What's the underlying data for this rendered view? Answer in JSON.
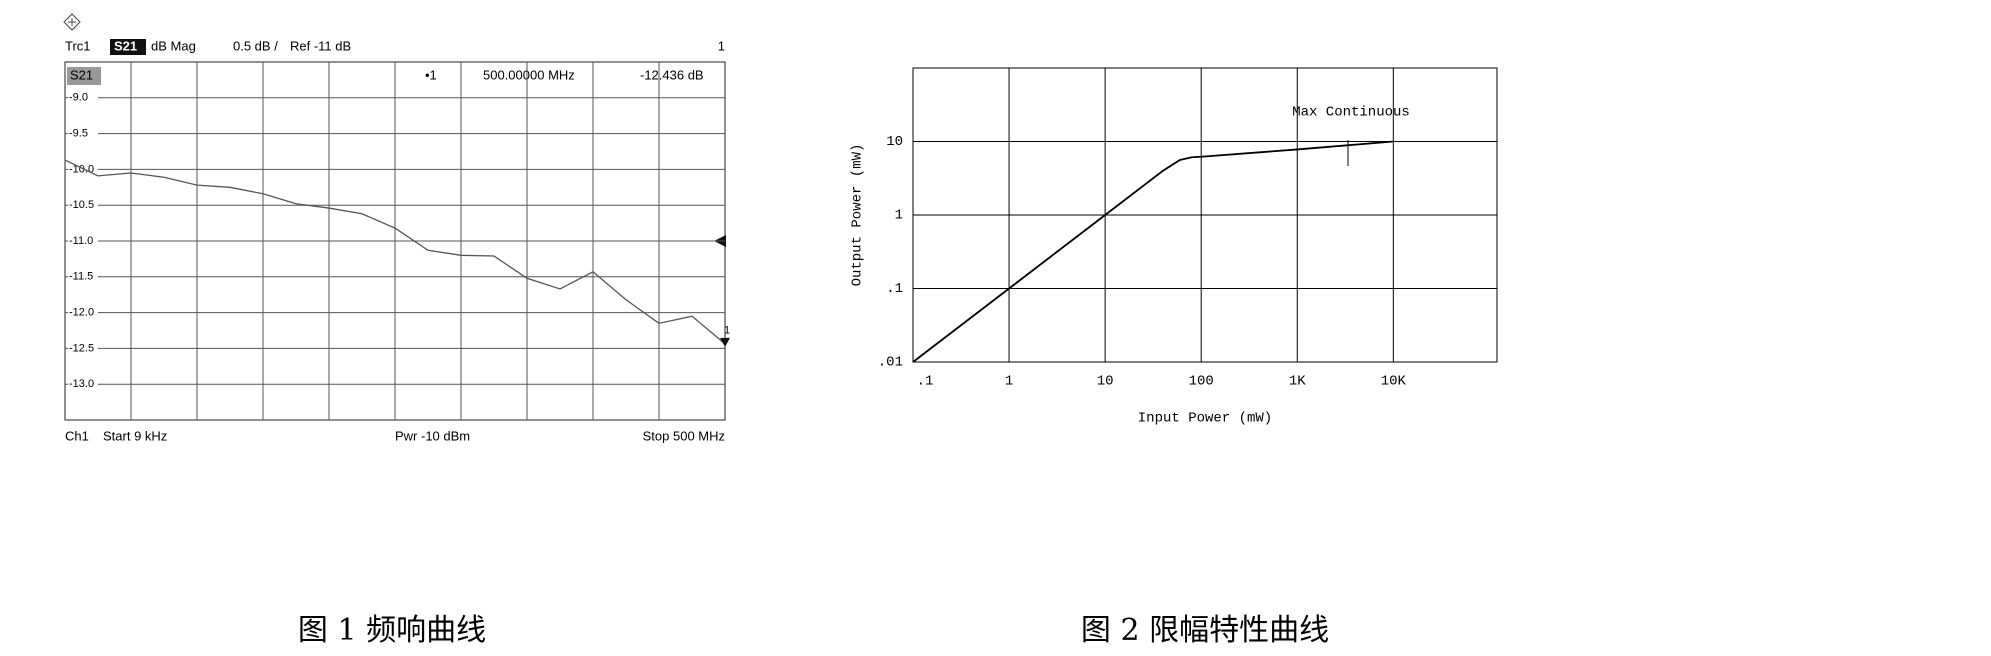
{
  "chart_data": [
    {
      "type": "line",
      "trace": "Trc1",
      "measurement": "S21",
      "format": "dB Mag",
      "scale": "0.5 dB /",
      "ref": "Ref -11 dB",
      "window": "1",
      "trace_label": "S21",
      "marker": {
        "label": "•1",
        "x": "500.00000 MHz",
        "y": "-12.436 dB",
        "id": "1"
      },
      "channel": "Ch1",
      "start": "Start 9 kHz",
      "power": "Pwr -10 dBm",
      "stop": "Stop 500 MHz",
      "caption": "图 1 频响曲线",
      "x": [
        0.009,
        25,
        50,
        75,
        100,
        125,
        150,
        175,
        200,
        225,
        250,
        275,
        300,
        325,
        350,
        375,
        400,
        425,
        450,
        475,
        500
      ],
      "values": [
        -9.87,
        -10.09,
        -10.05,
        -10.11,
        -10.22,
        -10.25,
        -10.34,
        -10.48,
        -10.54,
        -10.62,
        -10.82,
        -11.13,
        -11.2,
        -11.21,
        -11.52,
        -11.67,
        -11.43,
        -11.82,
        -12.15,
        -12.05,
        -12.436
      ],
      "color": "#555555",
      "xlim": [
        0.009,
        500
      ],
      "ylim": [
        -13.5,
        -8.5
      ],
      "yticks": [
        {
          "value": -9,
          "label": "-9.0"
        },
        -9.5,
        {
          "value": -10,
          "label": "-10.0"
        },
        -10.5,
        {
          "value": -11,
          "label": "-11.0"
        },
        -11.5,
        {
          "value": -12,
          "label": "-12.0"
        },
        -12.5,
        {
          "value": -13,
          "label": "-13.0"
        }
      ],
      "grid": true
    },
    {
      "type": "line",
      "xscale": "log",
      "yscale": "log",
      "xlabel": "Input Power (mW)",
      "ylabel": "Output Power (mW)",
      "annotation": "Max Continuous",
      "caption": "图 2 限幅特性曲线",
      "x": [
        0.1,
        1,
        10,
        40,
        60,
        80,
        100,
        1000,
        10000
      ],
      "values": [
        0.01,
        0.1,
        1,
        4,
        5.6,
        6.1,
        6.2,
        7.8,
        10
      ],
      "color": "#000000",
      "xlim": [
        0.1,
        120000
      ],
      "ylim": [
        0.01,
        100
      ],
      "xticks": [
        {
          "value": 0.1,
          "label": ".1"
        },
        1,
        10,
        100,
        {
          "value": 1000,
          "label": "1K"
        },
        {
          "value": 10000,
          "label": "10K"
        }
      ],
      "yticks": [
        {
          "value": 0.01,
          "label": ".01"
        },
        {
          "value": 0.1,
          "label": ".1"
        },
        1,
        10
      ],
      "grid": true
    }
  ]
}
